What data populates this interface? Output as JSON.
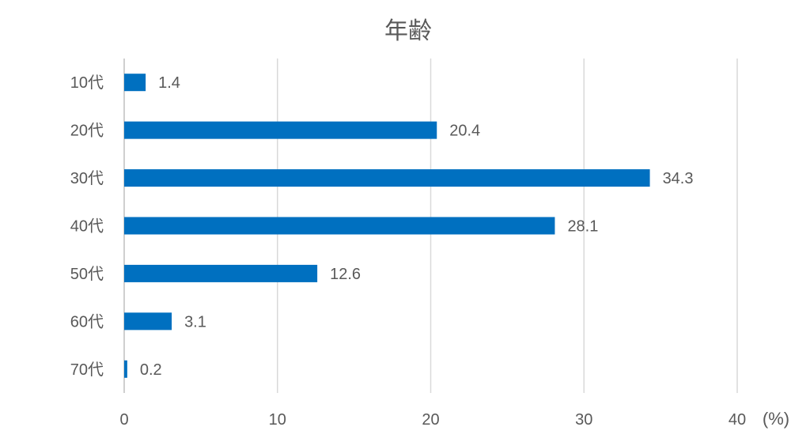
{
  "chart_data": {
    "type": "bar",
    "orientation": "horizontal",
    "title": "年齢",
    "categories": [
      "10代",
      "20代",
      "30代",
      "40代",
      "50代",
      "60代",
      "70代"
    ],
    "values": [
      1.4,
      20.4,
      34.3,
      28.1,
      12.6,
      3.1,
      0.2
    ],
    "data_labels": [
      "1.4",
      "20.4",
      "34.3",
      "28.1",
      "12.6",
      "3.1",
      "0.2"
    ],
    "x_ticks": [
      "0",
      "10",
      "20",
      "30",
      "40"
    ],
    "xlim": [
      0,
      40
    ],
    "x_unit_label": "(%)",
    "grid": "vertical",
    "legend": "none",
    "bar_color": "#0070c0"
  }
}
